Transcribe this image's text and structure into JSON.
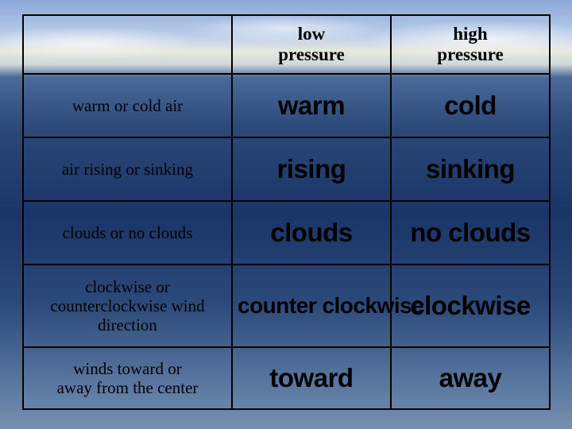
{
  "table": {
    "type": "table",
    "background": {
      "sky_top": "#8aa8d8",
      "cloud": "#e8e8e0",
      "water_dark": "#1a3568",
      "water_light": "#5a78a0"
    },
    "border_color": "#000000",
    "header_font": {
      "family": "Georgia",
      "weight": "bold",
      "size_pt": 17,
      "color": "#000000"
    },
    "rowlabel_font": {
      "family": "Georgia",
      "weight": "normal",
      "size_pt": 16,
      "color": "#000000"
    },
    "answer_font": {
      "family": "Arial",
      "weight": "900",
      "size_pt": 25,
      "color": "#000000"
    },
    "columns": {
      "col1_header_line1": "low",
      "col1_header_line2": "pressure",
      "col2_header_line1": "high",
      "col2_header_line2": "pressure"
    },
    "rows": [
      {
        "label": "warm or cold air",
        "low": "warm",
        "high": "cold"
      },
      {
        "label": "air rising or sinking",
        "low": "rising",
        "high": "sinking"
      },
      {
        "label": "clouds or no clouds",
        "low": "clouds",
        "high": "no clouds"
      },
      {
        "label_line1": "clockwise or",
        "label_line2": "counterclockwise wind",
        "label_line3": "direction",
        "low": "counter clockwise",
        "high": "clockwise"
      },
      {
        "label_line1": "winds toward or",
        "label_line2": "away from the center",
        "low": "toward",
        "high": "away"
      }
    ]
  }
}
